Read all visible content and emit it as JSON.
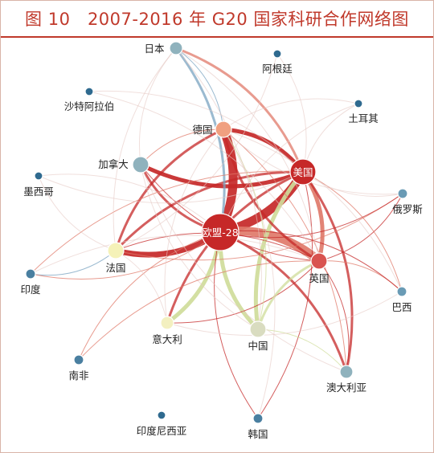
{
  "title": "图 10　2007-2016 年 G20 国家科研合作网络图",
  "colors": {
    "title": "#c0392b",
    "border": "#d9b4a8",
    "strong_link": "#c62828",
    "medium_link": "#e07a6a",
    "green_link": "#cfdc9a",
    "blue_link": "#7aa3c0",
    "faint_link": "#e6c9c5"
  },
  "nodes": [
    {
      "id": "eu28",
      "label": "欧盟-28",
      "color": "#c62828",
      "size": "xl",
      "label_inside": true
    },
    {
      "id": "usa",
      "label": "美国",
      "color": "#c62828",
      "size": "lg",
      "label_inside": true
    },
    {
      "id": "uk",
      "label": "英国",
      "color": "#d9534f",
      "size": "md"
    },
    {
      "id": "germany",
      "label": "德国",
      "color": "#f0a080",
      "size": "md"
    },
    {
      "id": "france",
      "label": "法国",
      "color": "#f5f2b8",
      "size": "md"
    },
    {
      "id": "italy",
      "label": "意大利",
      "color": "#f3f0c0",
      "size": "sm"
    },
    {
      "id": "china",
      "label": "中国",
      "color": "#d9dcc0",
      "size": "md"
    },
    {
      "id": "canada",
      "label": "加拿大",
      "color": "#8fb2bd",
      "size": "md"
    },
    {
      "id": "japan",
      "label": "日本",
      "color": "#8fb2bd",
      "size": "sm"
    },
    {
      "id": "australia",
      "label": "澳大利亚",
      "color": "#8fb2bd",
      "size": "sm"
    },
    {
      "id": "russia",
      "label": "俄罗斯",
      "color": "#6a9bb5",
      "size": "xs"
    },
    {
      "id": "brazil",
      "label": "巴西",
      "color": "#6a9bb5",
      "size": "xs"
    },
    {
      "id": "korea",
      "label": "韩国",
      "color": "#4a7fa0",
      "size": "xs"
    },
    {
      "id": "india",
      "label": "印度",
      "color": "#4a7fa0",
      "size": "xs"
    },
    {
      "id": "south_africa",
      "label": "南非",
      "color": "#4a7fa0",
      "size": "xs"
    },
    {
      "id": "indonesia",
      "label": "印度尼西亚",
      "color": "#2f6a8f",
      "size": "xxs"
    },
    {
      "id": "mexico",
      "label": "墨西哥",
      "color": "#2f6a8f",
      "size": "xxs"
    },
    {
      "id": "saudi",
      "label": "沙特阿拉伯",
      "color": "#2f6a8f",
      "size": "xxs"
    },
    {
      "id": "argentina",
      "label": "阿根廷",
      "color": "#2f6a8f",
      "size": "xxs"
    },
    {
      "id": "turkey",
      "label": "土耳其",
      "color": "#2f6a8f",
      "size": "xxs"
    }
  ],
  "links": [
    {
      "source": "eu28",
      "target": "usa",
      "color": "strong_link",
      "weight": 5
    },
    {
      "source": "eu28",
      "target": "uk",
      "color": "medium_link",
      "weight": 5
    },
    {
      "source": "eu28",
      "target": "germany",
      "color": "strong_link",
      "weight": 5
    },
    {
      "source": "eu28",
      "target": "france",
      "color": "strong_link",
      "weight": 4
    },
    {
      "source": "usa",
      "target": "germany",
      "color": "strong_link",
      "weight": 3
    },
    {
      "source": "usa",
      "target": "uk",
      "color": "medium_link",
      "weight": 3
    },
    {
      "source": "usa",
      "target": "china",
      "color": "green_link",
      "weight": 3
    },
    {
      "source": "usa",
      "target": "canada",
      "color": "strong_link",
      "weight": 3
    },
    {
      "source": "usa",
      "target": "france",
      "color": "strong_link",
      "weight": 2
    },
    {
      "source": "eu28",
      "target": "italy",
      "color": "green_link",
      "weight": 3
    },
    {
      "source": "eu28",
      "target": "china",
      "color": "green_link",
      "weight": 3
    },
    {
      "source": "eu28",
      "target": "canada",
      "color": "strong_link",
      "weight": 2
    },
    {
      "source": "usa",
      "target": "japan",
      "color": "medium_link",
      "weight": 2
    },
    {
      "source": "usa",
      "target": "australia",
      "color": "strong_link",
      "weight": 2
    },
    {
      "source": "usa",
      "target": "italy",
      "color": "strong_link",
      "weight": 2
    },
    {
      "source": "eu28",
      "target": "australia",
      "color": "strong_link",
      "weight": 2
    },
    {
      "source": "eu28",
      "target": "japan",
      "color": "blue_link",
      "weight": 2
    },
    {
      "source": "uk",
      "target": "germany",
      "color": "strong_link",
      "weight": 2
    },
    {
      "source": "uk",
      "target": "france",
      "color": "strong_link",
      "weight": 1
    },
    {
      "source": "uk",
      "target": "italy",
      "color": "strong_link",
      "weight": 1
    },
    {
      "source": "uk",
      "target": "china",
      "color": "green_link",
      "weight": 2
    },
    {
      "source": "uk",
      "target": "australia",
      "color": "strong_link",
      "weight": 1
    },
    {
      "source": "uk",
      "target": "russia",
      "color": "strong_link",
      "weight": 1
    },
    {
      "source": "uk",
      "target": "brazil",
      "color": "medium_link",
      "weight": 1
    },
    {
      "source": "germany",
      "target": "france",
      "color": "strong_link",
      "weight": 2
    },
    {
      "source": "germany",
      "target": "china",
      "color": "green_link",
      "weight": 1
    },
    {
      "source": "germany",
      "target": "japan",
      "color": "blue_link",
      "weight": 1
    },
    {
      "source": "france",
      "target": "india",
      "color": "blue_link",
      "weight": 1
    },
    {
      "source": "france",
      "target": "russia",
      "color": "medium_link",
      "weight": 1
    },
    {
      "source": "canada",
      "target": "germany",
      "color": "medium_link",
      "weight": 1
    },
    {
      "source": "canada",
      "target": "uk",
      "color": "strong_link",
      "weight": 1
    },
    {
      "source": "canada",
      "target": "japan",
      "color": "faint_link",
      "weight": 1
    },
    {
      "source": "eu28",
      "target": "russia",
      "color": "strong_link",
      "weight": 1
    },
    {
      "source": "eu28",
      "target": "brazil",
      "color": "strong_link",
      "weight": 1
    },
    {
      "source": "eu28",
      "target": "korea",
      "color": "strong_link",
      "weight": 1
    },
    {
      "source": "eu28",
      "target": "india",
      "color": "medium_link",
      "weight": 1
    },
    {
      "source": "eu28",
      "target": "south_africa",
      "color": "medium_link",
      "weight": 1
    },
    {
      "source": "eu28",
      "target": "turkey",
      "color": "faint_link",
      "weight": 1
    },
    {
      "source": "eu28",
      "target": "mexico",
      "color": "faint_link",
      "weight": 1
    },
    {
      "source": "usa",
      "target": "korea",
      "color": "strong_link",
      "weight": 1
    },
    {
      "source": "usa",
      "target": "india",
      "color": "medium_link",
      "weight": 1
    },
    {
      "source": "usa",
      "target": "brazil",
      "color": "medium_link",
      "weight": 1
    },
    {
      "source": "usa",
      "target": "russia",
      "color": "faint_link",
      "weight": 1
    },
    {
      "source": "usa",
      "target": "turkey",
      "color": "faint_link",
      "weight": 1
    },
    {
      "source": "usa",
      "target": "saudi",
      "color": "faint_link",
      "weight": 1
    },
    {
      "source": "usa",
      "target": "mexico",
      "color": "faint_link",
      "weight": 1
    },
    {
      "source": "usa",
      "target": "argentina",
      "color": "faint_link",
      "weight": 1
    },
    {
      "source": "china",
      "target": "australia",
      "color": "green_link",
      "weight": 1
    },
    {
      "source": "china",
      "target": "japan",
      "color": "faint_link",
      "weight": 1
    },
    {
      "source": "china",
      "target": "canada",
      "color": "faint_link",
      "weight": 1
    },
    {
      "source": "italy",
      "target": "france",
      "color": "faint_link",
      "weight": 1
    },
    {
      "source": "italy",
      "target": "germany",
      "color": "faint_link",
      "weight": 1
    },
    {
      "source": "italy",
      "target": "brazil",
      "color": "faint_link",
      "weight": 1
    },
    {
      "source": "south_africa",
      "target": "uk",
      "color": "medium_link",
      "weight": 1
    },
    {
      "source": "australia",
      "target": "germany",
      "color": "medium_link",
      "weight": 1
    },
    {
      "source": "australia",
      "target": "canada",
      "color": "faint_link",
      "weight": 1
    },
    {
      "source": "japan",
      "target": "france",
      "color": "faint_link",
      "weight": 1
    },
    {
      "source": "japan",
      "target": "uk",
      "color": "faint_link",
      "weight": 1
    },
    {
      "source": "korea",
      "target": "germany",
      "color": "faint_link",
      "weight": 1
    },
    {
      "source": "russia",
      "target": "germany",
      "color": "faint_link",
      "weight": 1
    },
    {
      "source": "brazil",
      "target": "germany",
      "color": "faint_link",
      "weight": 1
    },
    {
      "source": "india",
      "target": "uk",
      "color": "faint_link",
      "weight": 1
    },
    {
      "source": "mexico",
      "target": "france",
      "color": "faint_link",
      "weight": 1
    },
    {
      "source": "saudi",
      "target": "uk",
      "color": "faint_link",
      "weight": 1
    },
    {
      "source": "turkey",
      "target": "germany",
      "color": "faint_link",
      "weight": 1
    },
    {
      "source": "argentina",
      "target": "france",
      "color": "faint_link",
      "weight": 1
    }
  ]
}
